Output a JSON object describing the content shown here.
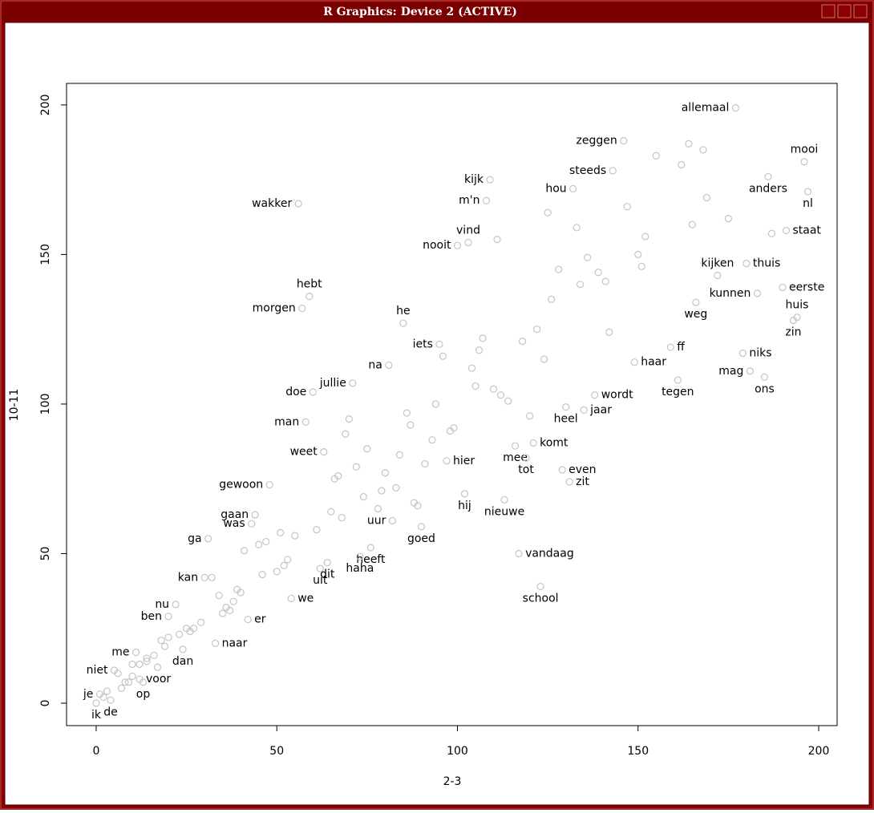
{
  "window": {
    "title": "R Graphics: Device 2 (ACTIVE)"
  },
  "chart_data": {
    "type": "scatter",
    "xlabel": "2-3",
    "ylabel": "10-11",
    "color": "#c4c4c4",
    "xlim": [
      -8.2,
      205.1
    ],
    "ylim": [
      -7.5,
      207.2
    ],
    "xticks": [
      0,
      50,
      100,
      150,
      200
    ],
    "yticks": [
      0,
      50,
      100,
      150,
      200
    ],
    "labels": [
      "allemaal",
      "zeggen",
      "steeds",
      "mooi",
      "anders",
      "nl",
      "kijk",
      "hou",
      "m'n",
      "wakker",
      "vind",
      "nooit",
      "staat",
      "kijken",
      "thuis",
      "hebt",
      "morgen",
      "kunnen",
      "eerste",
      "weg",
      "huis",
      "zin",
      "he",
      "iets",
      "ff",
      "niks",
      "na",
      "haar",
      "mag",
      "tegen",
      "ons",
      "jullie",
      "doe",
      "wordt",
      "jaar",
      "heel",
      "man",
      "komt",
      "weet",
      "hier",
      "mee",
      "tot",
      "even",
      "zit",
      "gewoon",
      "hij",
      "nieuwe",
      "gaan",
      "was",
      "uur",
      "ga",
      "goed",
      "vandaag",
      "heeft",
      "haha",
      "dit",
      "uit",
      "kan",
      "school",
      "we",
      "nu",
      "ben",
      "er",
      "naar",
      "me",
      "dan",
      "niet",
      "voor",
      "op",
      "je",
      "ik",
      "de",
      null,
      null,
      null,
      null,
      null,
      null,
      null,
      null,
      null,
      null,
      null,
      null,
      null,
      null,
      null,
      null,
      null,
      null,
      null,
      null,
      null,
      null,
      null,
      null,
      null,
      null,
      null,
      null,
      null,
      null,
      null,
      null,
      null,
      null,
      null,
      null,
      null,
      null,
      null,
      null,
      null,
      null,
      null,
      null,
      null,
      null,
      null,
      null,
      null,
      null,
      null,
      null,
      null,
      null,
      null,
      null,
      null,
      null,
      null,
      null,
      null,
      null,
      null,
      null,
      null,
      null,
      null,
      null,
      null,
      null,
      null,
      null,
      null,
      null,
      null,
      null,
      null,
      null,
      null,
      null,
      null,
      null,
      null,
      null
    ],
    "x": [
      177,
      146,
      143,
      196,
      186,
      197,
      109,
      132,
      108,
      56,
      103,
      100,
      191,
      172,
      180,
      59,
      57,
      183,
      190,
      166,
      194,
      193,
      85,
      95,
      159,
      179,
      81,
      149,
      181,
      161,
      185,
      71,
      60,
      138,
      135,
      130,
      58,
      121,
      63,
      97,
      116,
      119,
      129,
      131,
      48,
      102,
      113,
      44,
      43,
      82,
      31,
      90,
      117,
      76,
      73,
      64,
      62,
      30,
      123,
      54,
      22,
      20,
      42,
      33,
      11,
      24,
      5,
      12,
      13,
      1,
      0,
      4,
      155,
      164,
      162,
      168,
      147,
      125,
      169,
      165,
      175,
      187,
      133,
      111,
      152,
      150,
      136,
      151,
      128,
      139,
      134,
      141,
      126,
      142,
      107,
      122,
      118,
      106,
      96,
      124,
      104,
      105,
      110,
      112,
      114,
      94,
      86,
      70,
      120,
      87,
      99,
      98,
      93,
      69,
      75,
      84,
      91,
      72,
      80,
      67,
      66,
      79,
      83,
      88,
      89,
      74,
      78,
      65,
      68,
      61,
      51,
      55,
      41,
      45,
      47,
      53,
      52,
      50,
      46,
      32,
      34,
      39,
      40,
      38,
      36,
      35,
      37,
      29,
      27,
      26,
      25,
      23,
      20,
      18,
      19,
      16,
      14,
      14,
      12,
      10,
      17,
      6,
      10,
      9,
      8,
      7,
      2,
      3
    ],
    "y": [
      199,
      188,
      178,
      181,
      176,
      171,
      175,
      172,
      168,
      167,
      154,
      153,
      158,
      143,
      147,
      136,
      132,
      137,
      139,
      134,
      129,
      128,
      127,
      120,
      119,
      117,
      113,
      114,
      111,
      108,
      109,
      107,
      104,
      103,
      98,
      99,
      94,
      87,
      84,
      81,
      86,
      82,
      78,
      74,
      73,
      70,
      68,
      63,
      60,
      61,
      55,
      59,
      50,
      52,
      49,
      47,
      45,
      42,
      39,
      35,
      33,
      29,
      28,
      20,
      17,
      18,
      11,
      8,
      7,
      3,
      0,
      1,
      183,
      187,
      180,
      185,
      166,
      164,
      169,
      160,
      162,
      157,
      159,
      155,
      156,
      150,
      149,
      146,
      145,
      144,
      140,
      141,
      135,
      124,
      122,
      125,
      121,
      118,
      116,
      115,
      112,
      106,
      105,
      103,
      101,
      100,
      97,
      95,
      96,
      93,
      92,
      91,
      88,
      90,
      85,
      83,
      80,
      79,
      77,
      76,
      75,
      71,
      72,
      67,
      66,
      69,
      65,
      64,
      62,
      58,
      57,
      56,
      51,
      53,
      54,
      48,
      46,
      44,
      43,
      42,
      36,
      38,
      37,
      34,
      32,
      30,
      31,
      27,
      25,
      24,
      25,
      23,
      22,
      21,
      19,
      16,
      15,
      14,
      13,
      13,
      12,
      10,
      9,
      7,
      7,
      5,
      2,
      4
    ]
  }
}
